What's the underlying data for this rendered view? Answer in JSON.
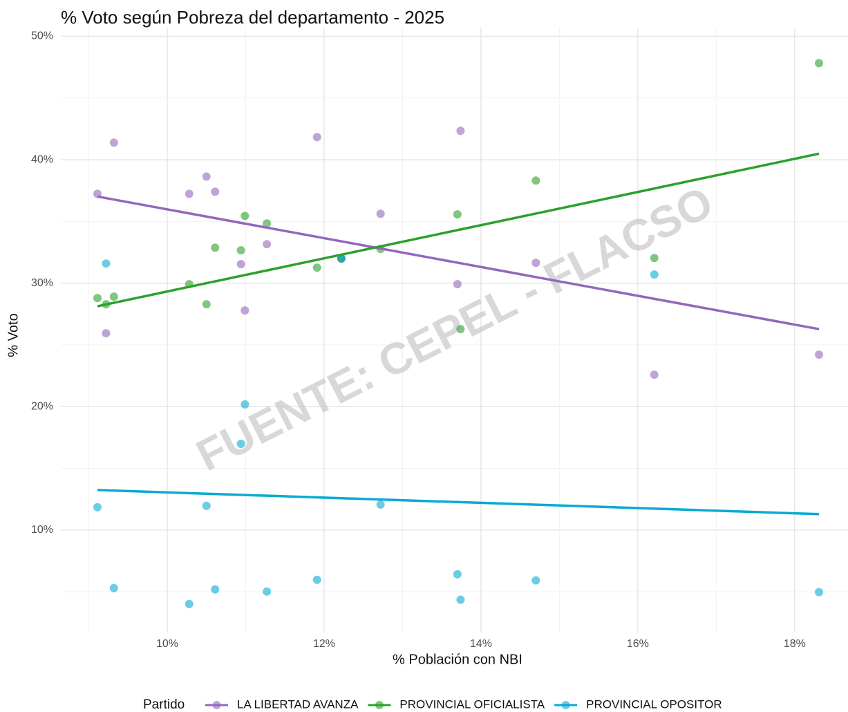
{
  "chart_data": {
    "type": "scatter",
    "title": "% Voto según Pobreza del departamento - 2025",
    "x_label": "% Población con NBI",
    "y_label": "% Voto",
    "annotation": "FUENTE: CEPEL - FLACSO",
    "legend_title": "Partido",
    "legend_position": "bottom",
    "grid": true,
    "x": [
      9.11,
      9.22,
      9.32,
      10.28,
      10.5,
      10.61,
      10.94,
      10.99,
      11.27,
      11.91,
      12.22,
      12.72,
      13.7,
      13.74,
      14.7,
      16.21,
      18.31
    ],
    "trend_x": [
      9.11,
      18.31
    ],
    "series": [
      {
        "name": "LA LIBERTAD AVANZA",
        "color": "#9467bd",
        "values": [
          37.24,
          25.94,
          41.38,
          37.24,
          38.64,
          37.41,
          31.54,
          27.79,
          33.16,
          41.83,
          31.99,
          35.62,
          29.92,
          42.34,
          31.65,
          22.59,
          24.21
        ],
        "trend": [
          37.02,
          26.28
        ]
      },
      {
        "name": "PROVINCIAL OFICIALISTA",
        "color": "#2ca02c",
        "values": [
          28.8,
          28.29,
          28.91,
          29.92,
          28.29,
          32.88,
          32.66,
          35.45,
          34.84,
          31.26,
          31.99,
          32.77,
          35.57,
          26.28,
          38.31,
          32.04,
          47.82
        ],
        "trend": [
          28.13,
          40.49
        ]
      },
      {
        "name": "PROVINCIAL OPOSITOR",
        "color": "#06aad6",
        "values": [
          11.85,
          31.59,
          5.3,
          4.01,
          11.96,
          5.19,
          16.99,
          20.18,
          5.02,
          5.97,
          32.04,
          12.07,
          6.42,
          4.35,
          5.92,
          30.7,
          4.97
        ],
        "trend": [
          13.24,
          11.29
        ]
      }
    ],
    "xlim": [
      8.643,
      18.68
    ],
    "ylim": [
      1.7,
      50.7
    ],
    "xticks": [
      {
        "value": 10,
        "label": "10%"
      },
      {
        "value": 12,
        "label": "12%"
      },
      {
        "value": 14,
        "label": "14%"
      },
      {
        "value": 16,
        "label": "16%"
      },
      {
        "value": 18,
        "label": "18%"
      }
    ],
    "yticks": [
      {
        "value": 10,
        "label": "10%"
      },
      {
        "value": 20,
        "label": "20%"
      },
      {
        "value": 30,
        "label": "30%"
      },
      {
        "value": 40,
        "label": "40%"
      },
      {
        "value": 50,
        "label": "50%"
      }
    ],
    "xminor": [
      9,
      11,
      13,
      15,
      17
    ],
    "yminor": [
      5,
      15,
      25,
      35,
      45
    ]
  }
}
